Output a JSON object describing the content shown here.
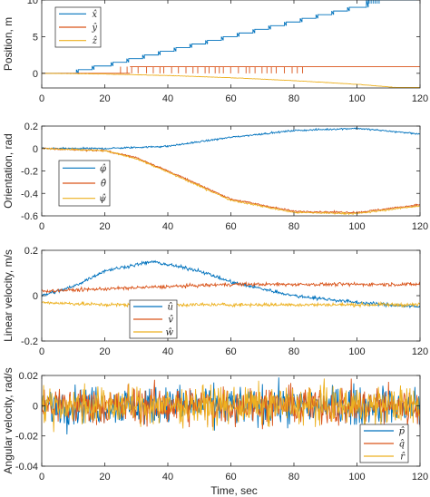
{
  "figure": {
    "xlabel": "Time, sec"
  },
  "colors": {
    "s1": "#0072BD",
    "s2": "#D95319",
    "s3": "#EDB120"
  },
  "chart_data": [
    {
      "type": "line",
      "ylabel": "Position, m",
      "xlim": [
        0,
        120
      ],
      "ylim": [
        -2,
        10
      ],
      "xticks": [
        0,
        20,
        40,
        60,
        80,
        100,
        120
      ],
      "yticks": [
        0,
        5,
        10
      ],
      "xticklabels": [
        "0",
        "20",
        "40",
        "60",
        "80",
        "100",
        "120"
      ],
      "yticklabels": [
        "0",
        "5",
        "10"
      ],
      "legend": {
        "position": "top-left",
        "entries": [
          "x̂",
          "ŷ",
          "ẑ"
        ]
      },
      "series": [
        {
          "name": "x̂",
          "color": "#0072BD",
          "kind": "stairs",
          "x": [
            0,
            11,
            16,
            22,
            27,
            32,
            37,
            42,
            47,
            52,
            57,
            62,
            67,
            72,
            77,
            82,
            87,
            92,
            97,
            103,
            120
          ],
          "y": [
            0,
            0.5,
            1,
            1.5,
            2,
            2.5,
            3,
            3.5,
            4,
            4.5,
            5,
            5.5,
            6,
            6.5,
            7,
            7.5,
            8,
            8.5,
            9,
            10,
            10
          ]
        },
        {
          "name": "ŷ",
          "color": "#D95319",
          "kind": "spiky",
          "x": [
            0,
            120
          ],
          "y": [
            0.9,
            0.9
          ],
          "baseline_start": 28
        },
        {
          "name": "ẑ",
          "color": "#EDB120",
          "kind": "noisy",
          "x": [
            0,
            20,
            40,
            60,
            80,
            100,
            120
          ],
          "y": [
            0,
            -0.1,
            -0.3,
            -0.6,
            -1.0,
            -1.5,
            -2.2
          ]
        }
      ]
    },
    {
      "type": "line",
      "ylabel": "Orientation, rad",
      "xlim": [
        0,
        120
      ],
      "ylim": [
        -0.6,
        0.2
      ],
      "xticks": [
        0,
        20,
        40,
        60,
        80,
        100,
        120
      ],
      "yticks": [
        -0.6,
        -0.4,
        -0.2,
        0,
        0.2
      ],
      "xticklabels": [
        "0",
        "20",
        "40",
        "60",
        "80",
        "100",
        "120"
      ],
      "yticklabels": [
        "-0.6",
        "-0.4",
        "-0.2",
        "0",
        "0.2"
      ],
      "legend": {
        "position": "bottom-left",
        "entries": [
          "φ̂",
          "θ̂",
          "ψ̂"
        ]
      },
      "series": [
        {
          "name": "φ̂",
          "color": "#0072BD",
          "kind": "noisy",
          "x": [
            0,
            20,
            40,
            60,
            80,
            100,
            120
          ],
          "y": [
            0,
            0,
            0.02,
            0.1,
            0.16,
            0.18,
            0.13
          ]
        },
        {
          "name": "θ̂",
          "color": "#D95319",
          "kind": "noisy",
          "x": [
            0,
            20,
            30,
            40,
            60,
            80,
            100,
            120
          ],
          "y": [
            0,
            -0.02,
            -0.08,
            -0.2,
            -0.45,
            -0.56,
            -0.57,
            -0.5
          ]
        },
        {
          "name": "ψ̂",
          "color": "#EDB120",
          "kind": "noisy",
          "x": [
            0,
            20,
            30,
            40,
            60,
            80,
            100,
            120
          ],
          "y": [
            0,
            -0.02,
            -0.09,
            -0.21,
            -0.46,
            -0.57,
            -0.58,
            -0.51
          ]
        }
      ]
    },
    {
      "type": "line",
      "ylabel": "Linear velocity, m/s",
      "xlim": [
        0,
        120
      ],
      "ylim": [
        -0.2,
        0.2
      ],
      "xticks": [
        0,
        20,
        40,
        60,
        80,
        100,
        120
      ],
      "yticks": [
        -0.2,
        0,
        0.2
      ],
      "xticklabels": [
        "0",
        "20",
        "40",
        "60",
        "80",
        "100",
        "120"
      ],
      "yticklabels": [
        "-0.2",
        "0",
        "0.2"
      ],
      "legend": {
        "position": "bottom-center",
        "entries": [
          "û",
          "v̂",
          "ŵ"
        ]
      },
      "series": [
        {
          "name": "û",
          "color": "#0072BD",
          "kind": "noisy",
          "x": [
            0,
            10,
            20,
            35,
            50,
            60,
            80,
            100,
            120
          ],
          "y": [
            0,
            0.04,
            0.11,
            0.15,
            0.11,
            0.06,
            0.0,
            -0.03,
            -0.05
          ]
        },
        {
          "name": "v̂",
          "color": "#D95319",
          "kind": "noisy",
          "x": [
            0,
            20,
            40,
            60,
            80,
            100,
            120
          ],
          "y": [
            0.02,
            0.03,
            0.04,
            0.05,
            0.05,
            0.05,
            0.05
          ]
        },
        {
          "name": "ŵ",
          "color": "#EDB120",
          "kind": "noisy",
          "x": [
            0,
            20,
            40,
            60,
            80,
            100,
            120
          ],
          "y": [
            -0.03,
            -0.04,
            -0.04,
            -0.04,
            -0.04,
            -0.04,
            -0.04
          ]
        }
      ]
    },
    {
      "type": "line",
      "ylabel": "Angular velocity, rad/s",
      "xlim": [
        0,
        120
      ],
      "ylim": [
        -0.04,
        0.02
      ],
      "xticks": [
        0,
        20,
        40,
        60,
        80,
        100,
        120
      ],
      "yticks": [
        -0.04,
        -0.02,
        0,
        0.02
      ],
      "xticklabels": [
        "0",
        "20",
        "40",
        "60",
        "80",
        "100",
        "120"
      ],
      "yticklabels": [
        "-0.04",
        "-0.02",
        "0",
        "0.02"
      ],
      "legend": {
        "position": "bottom-right",
        "entries": [
          "p̂",
          "q̂",
          "r̂"
        ]
      },
      "series": [
        {
          "name": "p̂",
          "color": "#0072BD",
          "kind": "noisy",
          "x": [
            0,
            120
          ],
          "y": [
            0,
            0
          ]
        },
        {
          "name": "q̂",
          "color": "#D95319",
          "kind": "noisy",
          "x": [
            0,
            120
          ],
          "y": [
            0,
            0
          ]
        },
        {
          "name": "r̂",
          "color": "#EDB120",
          "kind": "noisy",
          "x": [
            0,
            120
          ],
          "y": [
            0,
            0
          ]
        }
      ]
    }
  ]
}
